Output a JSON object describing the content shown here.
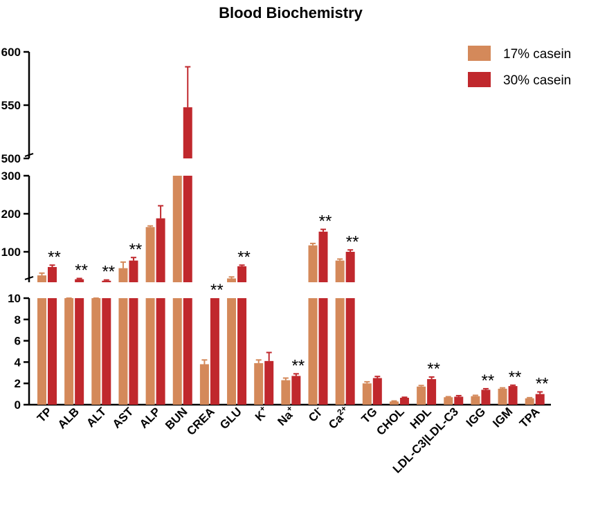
{
  "chart_data": {
    "type": "bar",
    "title": "Blood Biochemistry",
    "xlabel": "",
    "ylabel": "",
    "y_axis_breaks": [
      {
        "segment": "bottom",
        "range": [
          0,
          10
        ],
        "ticks": [
          0,
          2,
          4,
          6,
          8,
          10
        ],
        "tick_labels": [
          "0",
          "2",
          "4",
          "6",
          "8",
          "10"
        ]
      },
      {
        "segment": "middle",
        "range": [
          20,
          300
        ],
        "ticks": [
          100,
          200,
          300
        ],
        "tick_labels": [
          "100",
          "200",
          "300"
        ]
      },
      {
        "segment": "top",
        "range": [
          500,
          600
        ],
        "ticks": [
          500,
          550,
          600
        ],
        "tick_labels": [
          "500",
          "550",
          "600"
        ]
      }
    ],
    "categories": [
      "TP",
      "ALB",
      "ALT",
      "AST",
      "ALP",
      "BUN",
      "CREA",
      "GLU",
      "K+",
      "Na+",
      "Cl-",
      "Ca2+",
      "TG",
      "CHOL",
      "HDL",
      "LDL-C3|LDL-C3",
      "IGG",
      "IGM",
      "TPA"
    ],
    "category_labels": [
      {
        "base": "TP"
      },
      {
        "base": "ALB"
      },
      {
        "base": "ALT"
      },
      {
        "base": "AST"
      },
      {
        "base": "ALP"
      },
      {
        "base": "BUN"
      },
      {
        "base": "CREA"
      },
      {
        "base": "GLU"
      },
      {
        "base": "K",
        "sup": "+"
      },
      {
        "base": "Na",
        "sup": "+"
      },
      {
        "base": "Cl",
        "sup": "-"
      },
      {
        "base": "Ca",
        "sup": "2+"
      },
      {
        "base": "TG"
      },
      {
        "base": "CHOL"
      },
      {
        "base": "HDL"
      },
      {
        "base": "LDL-C3|LDL-C3"
      },
      {
        "base": "IGG"
      },
      {
        "base": "IGM"
      },
      {
        "base": "TPA"
      }
    ],
    "series": [
      {
        "name": "17% casein",
        "color": "#d4895a",
        "values": [
          38,
          13,
          15,
          57,
          165,
          300,
          3.8,
          30,
          3.9,
          2.3,
          117,
          77,
          2.0,
          0.3,
          1.7,
          0.7,
          0.8,
          1.5,
          0.6
        ],
        "errors": [
          6,
          1,
          1,
          16,
          3,
          0,
          0.4,
          4,
          0.3,
          0.2,
          5,
          4,
          0.15,
          0.05,
          0.1,
          0.05,
          0.08,
          0.08,
          0.06
        ]
      },
      {
        "name": "30% casein",
        "color": "#c0282d",
        "values": [
          60,
          28,
          24,
          77,
          188,
          548,
          10,
          62,
          4.1,
          2.7,
          153,
          100,
          2.5,
          0.65,
          2.4,
          0.75,
          1.4,
          1.75,
          1.0
        ],
        "errors": [
          5,
          2,
          2,
          8,
          33,
          38,
          0,
          3,
          0.8,
          0.2,
          6,
          5,
          0.15,
          0.05,
          0.2,
          0.1,
          0.1,
          0.08,
          0.2
        ]
      }
    ],
    "significance": [
      "**",
      "**",
      "**",
      "**",
      "",
      "",
      "**",
      "**",
      "",
      "**",
      "**",
      "**",
      "",
      "",
      "**",
      "",
      "**",
      "**",
      "**"
    ],
    "legend": {
      "position": "top-right",
      "entries": [
        "17% casein",
        "30% casein"
      ]
    },
    "grid": false
  }
}
